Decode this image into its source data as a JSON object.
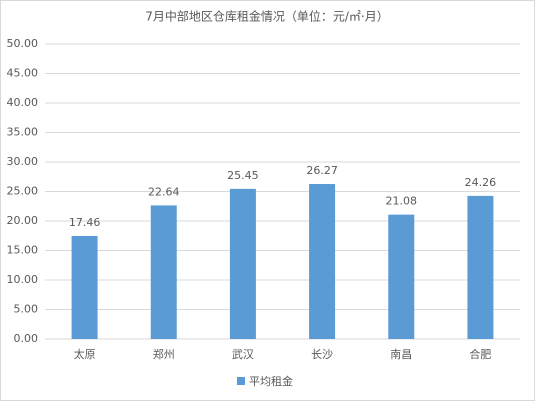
{
  "chart_data": {
    "type": "bar",
    "title": "7月中部地区仓库租金情况（单位：元/㎡·月）",
    "categories": [
      "太原",
      "郑州",
      "武汉",
      "长沙",
      "南昌",
      "合肥"
    ],
    "series": [
      {
        "name": "平均租金",
        "color": "#5b9bd5",
        "values": [
          17.46,
          22.64,
          25.45,
          26.27,
          21.08,
          24.26
        ]
      }
    ],
    "ylim": [
      0,
      50
    ],
    "yticks": [
      {
        "value": 0,
        "label": "0.00"
      },
      {
        "value": 5,
        "label": "5.00"
      },
      {
        "value": 10,
        "label": "10.00"
      },
      {
        "value": 15,
        "label": "15.00"
      },
      {
        "value": 20,
        "label": "20.00"
      },
      {
        "value": 25,
        "label": "25.00"
      },
      {
        "value": 30,
        "label": "30.00"
      },
      {
        "value": 35,
        "label": "35.00"
      },
      {
        "value": 40,
        "label": "40.00"
      },
      {
        "value": 45,
        "label": "45.00"
      },
      {
        "value": 50,
        "label": "50.00"
      }
    ],
    "grid": true,
    "legend": "bottom"
  }
}
